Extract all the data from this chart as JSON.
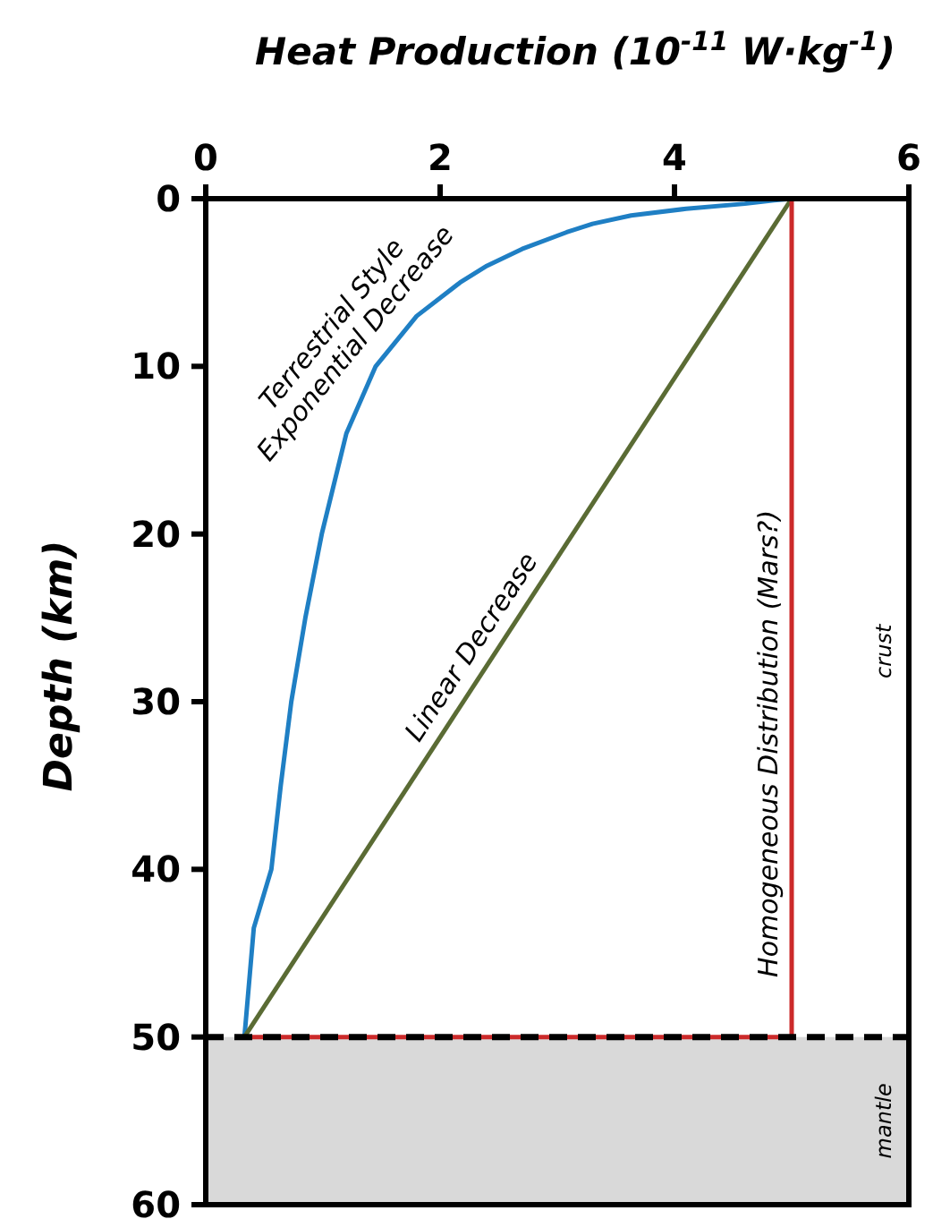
{
  "chart_data": {
    "type": "line",
    "xlabel": "Heat Production (10$^{-11}$ W·kg$^{-1}$)",
    "ylabel": "Depth (km)",
    "xlim": [
      0,
      6
    ],
    "xticks": [
      0,
      2,
      4,
      6
    ],
    "ylim": [
      60,
      0
    ],
    "yticks": [
      0,
      10,
      20,
      30,
      40,
      50,
      60
    ],
    "grid": false,
    "line_style": "solid",
    "marker": "none",
    "series": [
      {
        "name": "Terrestrial Style Exponential Decrease",
        "color": "#1f7fc4",
        "x": [
          5,
          4.85,
          4.6,
          4.1,
          3.63,
          3.3,
          3.08,
          2.7,
          2.4,
          2.17,
          1.8,
          1.45,
          1.2,
          0.99,
          0.85,
          0.73,
          0.64,
          0.56,
          0.41,
          0.33
        ],
        "values": [
          0,
          0.1,
          0.3,
          0.6,
          1,
          1.5,
          2,
          3,
          4,
          5,
          7,
          10,
          14,
          20,
          25,
          30,
          35,
          40,
          43.5,
          50
        ]
      },
      {
        "name": "Linear Decrease",
        "color": "#5a6b34",
        "x": [
          0.33,
          5
        ],
        "values": [
          50,
          0
        ]
      },
      {
        "name": "Homogeneous Distribution (Mars?)",
        "color": "#cc2a2a",
        "x": [
          5,
          5,
          0.33
        ],
        "values": [
          0,
          50,
          50
        ]
      }
    ],
    "ref_lines": [
      {
        "axis": "y",
        "value": 50,
        "color": "#000000",
        "line_style": "dashed"
      }
    ],
    "bands": [
      {
        "axis": "y",
        "from": 50,
        "to": 60,
        "label": "mantle",
        "color": "#d9d9d9"
      }
    ],
    "annotations": [
      "crust"
    ]
  }
}
